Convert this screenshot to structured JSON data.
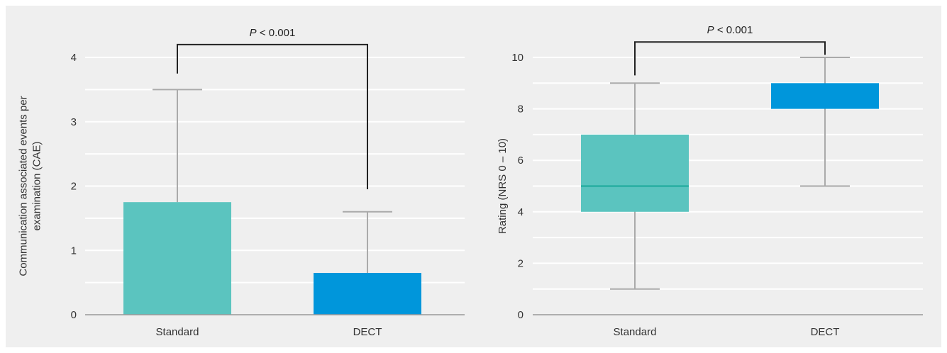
{
  "chart_data": [
    {
      "type": "bar",
      "categories": [
        "Standard",
        "DECT"
      ],
      "values": [
        1.75,
        0.65
      ],
      "error_upper": [
        3.5,
        1.6
      ],
      "ylabel_lines": [
        "Communication associated events per",
        "examination (CAE)"
      ],
      "ylim": [
        0,
        4
      ],
      "yticks": [
        "0",
        "1",
        "2",
        "3",
        "4"
      ],
      "gridlines": [
        0.5,
        1,
        1.5,
        2,
        2.5,
        3,
        3.5,
        4
      ],
      "colors": [
        "#5bc4bf",
        "#0096db"
      ],
      "significance": {
        "italic": "P",
        "text": " < 0.001",
        "left_top": 3.75,
        "right_top": 1.95,
        "bracket": 4.2
      }
    },
    {
      "type": "box",
      "categories": [
        "Standard",
        "DECT"
      ],
      "boxes": [
        {
          "min": 1,
          "q1": 4,
          "median": 5,
          "q3": 7,
          "max": 9
        },
        {
          "min": 5,
          "q1": 8,
          "median": 8,
          "q3": 9,
          "max": 10
        }
      ],
      "ylabel_lines": [
        "Rating (NRS 0 – 10)"
      ],
      "ylim": [
        0,
        10
      ],
      "yticks": [
        "0",
        "2",
        "4",
        "6",
        "8",
        "10"
      ],
      "gridlines": [
        1,
        2,
        3,
        4,
        5,
        6,
        7,
        8,
        9,
        10
      ],
      "colors": [
        "#5bc4bf",
        "#0096db"
      ],
      "median_color": "#1aa899",
      "significance": {
        "italic": "P",
        "text": " < 0.001",
        "left_top": 9.3,
        "right_top": 10.1,
        "bracket": 10.6
      }
    }
  ]
}
